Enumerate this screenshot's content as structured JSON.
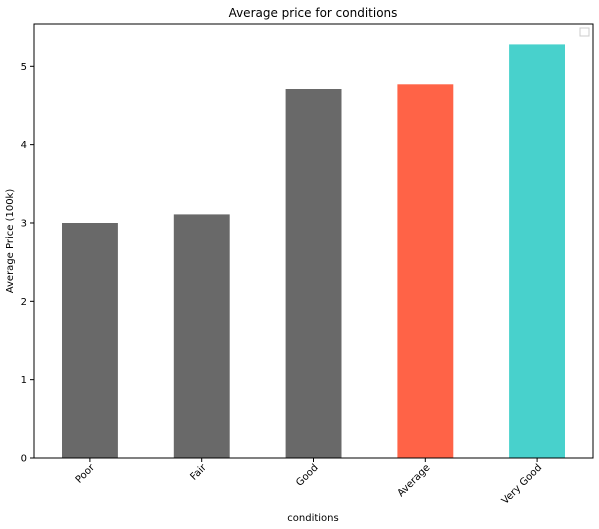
{
  "chart_data": {
    "type": "bar",
    "title": "Average price for conditions",
    "xlabel": "conditions",
    "ylabel": "Average Price (100k)",
    "categories": [
      "Poor",
      "Fair",
      "Good",
      "Average",
      "Very Good"
    ],
    "values": [
      3.0,
      3.11,
      4.71,
      4.77,
      5.28
    ],
    "bar_colors": [
      "#696969",
      "#696969",
      "#696969",
      "#FF6347",
      "#48D1CC"
    ],
    "yticks": [
      "0",
      "1",
      "2",
      "3",
      "4",
      "5"
    ],
    "ylim": [
      0,
      5.54
    ],
    "grid": false,
    "legend": {
      "placement": "top-right",
      "entries": []
    }
  }
}
